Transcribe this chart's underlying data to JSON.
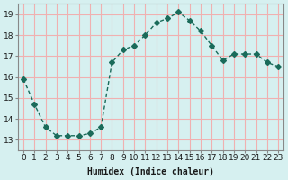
{
  "x": [
    0,
    1,
    2,
    3,
    4,
    5,
    6,
    7,
    8,
    9,
    10,
    11,
    12,
    13,
    14,
    15,
    16,
    17,
    18,
    19,
    20,
    21,
    22,
    23
  ],
  "y": [
    15.9,
    14.7,
    13.6,
    13.2,
    13.2,
    13.2,
    13.3,
    13.6,
    16.7,
    17.3,
    17.5,
    18.0,
    18.6,
    18.8,
    19.1,
    18.7,
    18.2,
    17.5,
    16.8,
    17.1,
    17.1,
    17.1,
    16.7,
    16.5
  ],
  "line_color": "#1a6b5a",
  "marker": "D",
  "marker_size": 3,
  "bg_color": "#d6f0f0",
  "grid_color": "#f0b0b0",
  "xlabel": "Humidex (Indice chaleur)",
  "ylabel": "",
  "title": "",
  "xlim": [
    -0.5,
    23.5
  ],
  "ylim": [
    12.5,
    19.5
  ],
  "yticks": [
    13,
    14,
    15,
    16,
    17,
    18,
    19
  ],
  "xticks": [
    0,
    1,
    2,
    3,
    4,
    5,
    6,
    7,
    8,
    9,
    10,
    11,
    12,
    13,
    14,
    15,
    16,
    17,
    18,
    19,
    20,
    21,
    22,
    23
  ],
  "xtick_labels": [
    "0",
    "1",
    "2",
    "3",
    "4",
    "5",
    "6",
    "7",
    "8",
    "9",
    "10",
    "11",
    "12",
    "13",
    "14",
    "15",
    "16",
    "17",
    "18",
    "19",
    "20",
    "21",
    "22",
    "23"
  ],
  "font_color": "#1a1a1a",
  "label_fontsize": 7,
  "tick_fontsize": 6.5
}
